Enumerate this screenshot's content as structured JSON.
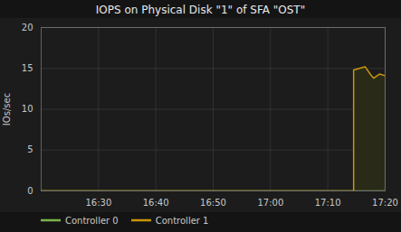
{
  "chart_data": {
    "type": "line",
    "title": "IOPS on Physical Disk \"1\" of SFA \"OST\"",
    "ylabel": "IOs/sec",
    "xlim": [
      0,
      60
    ],
    "xticks": [
      {
        "value": 10,
        "label": "16:30"
      },
      {
        "value": 20,
        "label": "16:40"
      },
      {
        "value": 30,
        "label": "16:50"
      },
      {
        "value": 40,
        "label": "17:00"
      },
      {
        "value": 50,
        "label": "17:10"
      },
      {
        "value": 60,
        "label": "17:20"
      }
    ],
    "ylim": [
      0,
      20
    ],
    "yticks": [
      0,
      5,
      10,
      15,
      20
    ],
    "grid": true,
    "legend": "bottom",
    "series": [
      {
        "name": "Controller 0",
        "color": "#7ab648",
        "type": "line",
        "x": [
          0,
          60
        ],
        "values": [
          0,
          0
        ]
      },
      {
        "name": "Controller 1",
        "color": "#c8960a",
        "type": "line",
        "x": [
          0,
          54.5,
          54.5,
          56.5,
          57.5,
          58.0,
          59.0,
          60
        ],
        "values": [
          0,
          0,
          14.8,
          15.2,
          14.2,
          13.8,
          14.3,
          14.1
        ]
      },
      {
        "type": "area",
        "color": "#2a2a18",
        "x": [
          0,
          54.5,
          54.5,
          56.5,
          57.5,
          58.0,
          59.0,
          60,
          60,
          0
        ],
        "values": [
          0,
          0,
          14.8,
          15.2,
          14.2,
          13.8,
          14.3,
          14.1,
          0,
          0
        ]
      }
    ]
  }
}
